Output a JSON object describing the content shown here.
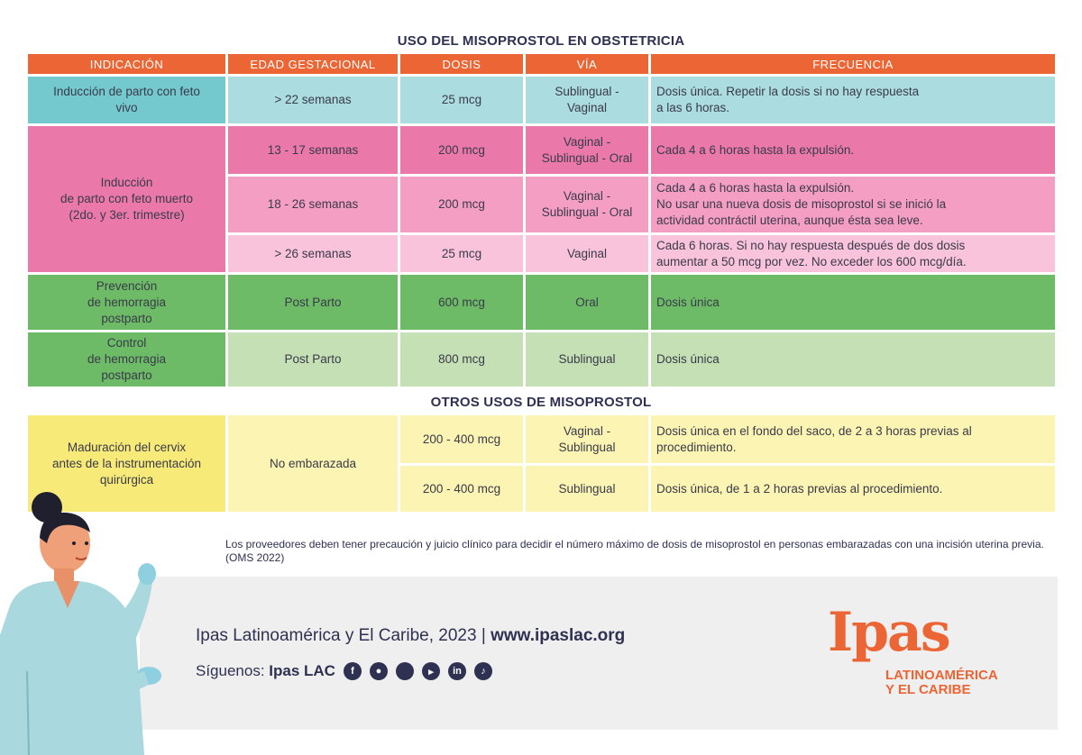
{
  "title": "USO DEL MISOPROSTOL EN OBSTETRICIA",
  "headers": [
    "INDICACIÓN",
    "EDAD GESTACIONAL",
    "DOSIS",
    "VÍA",
    "FRECUENCIA"
  ],
  "rows": {
    "induccion_vivo": {
      "indicacion": "Inducción de parto con feto\nvivo",
      "edad": "> 22 semanas",
      "dosis": "25 mcg",
      "via": "Sublingual -\nVaginal",
      "frecuencia": "Dosis única. Repetir la dosis si no hay respuesta\na las 6 horas."
    },
    "induccion_muerto": {
      "indicacion": "Inducción\nde parto con feto muerto\n(2do. y 3er. trimestre)",
      "sub": [
        {
          "edad": "13 - 17 semanas",
          "dosis": "200 mcg",
          "via": "Vaginal -\nSublingual - Oral",
          "frecuencia": "Cada 4 a 6 horas hasta la expulsión."
        },
        {
          "edad": "18 - 26 semanas",
          "dosis": "200 mcg",
          "via": "Vaginal -\nSublingual - Oral",
          "frecuencia": "Cada 4 a 6 horas hasta la expulsión.\nNo usar una nueva dosis de misoprostol si se inició la\nactividad contráctil uterina, aunque ésta sea leve."
        },
        {
          "edad": "> 26 semanas",
          "dosis": "25 mcg",
          "via": "Vaginal",
          "frecuencia": "Cada 6 horas. Si no hay respuesta después de dos dosis\naumentar a 50 mcg por vez. No exceder los 600 mcg/día."
        }
      ]
    },
    "prevencion": {
      "indicacion": "Prevención\nde hemorragia\npostparto",
      "edad": "Post Parto",
      "dosis": "600 mcg",
      "via": "Oral",
      "frecuencia": "Dosis única"
    },
    "control": {
      "indicacion": "Control\nde hemorragia\npostparto",
      "edad": "Post Parto",
      "dosis": "800 mcg",
      "via": "Sublingual",
      "frecuencia": "Dosis única"
    }
  },
  "otros_title": "OTROS USOS DE MISOPROSTOL",
  "otros": {
    "indicacion": "Maduración del cervix\nantes de la instrumentación\nquirúrgica",
    "edad": "No embarazada",
    "sub": [
      {
        "dosis": "200 - 400 mcg",
        "via": "Vaginal -\nSublingual",
        "frecuencia": "Dosis única en el fondo del saco, de 2 a 3 horas previas al\nprocedimiento."
      },
      {
        "dosis": "200 - 400 mcg",
        "via": "Sublingual",
        "frecuencia": "Dosis única, de 1 a 2 horas previas al procedimiento."
      }
    ]
  },
  "footnote": "Los proveedores deben tener precaución y juicio clínico para decidir el número máximo de dosis de misoprostol en personas embarazadas con una incisión uterina previa. (OMS 2022)",
  "footer": {
    "org": "Ipas Latinoamérica y El Caribe, 2023 | ",
    "url": "www.ipaslac.org",
    "follow_label": "Síguenos: ",
    "handle": "Ipas LAC",
    "social_icons": [
      "facebook-icon",
      "twitter-icon",
      "instagram-icon",
      "youtube-icon",
      "linkedin-icon",
      "tiktok-icon"
    ]
  },
  "logo": {
    "main": "Ipas",
    "sub_line1": "LATINOAMÉRICA",
    "sub_line2": "Y EL CARIBE"
  },
  "colors": {
    "header": "#ec6534",
    "teal_dark": "#74c9cf",
    "teal_light": "#abdde0",
    "pink_dark": "#ea79aa",
    "pink_mid": "#f59ec3",
    "pink_light": "#f9c4db",
    "green_dark": "#6dbb67",
    "green_light": "#c4e0b4",
    "yellow_dark": "#f8ea78",
    "yellow_light": "#fbf4b2",
    "navy": "#2e3151"
  }
}
